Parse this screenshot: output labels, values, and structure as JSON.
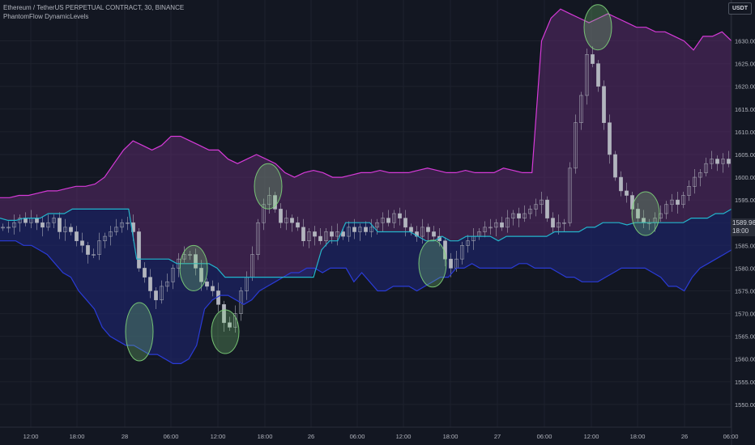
{
  "legend": {
    "symbol": "Ethereum / TetherUS PERPETUAL CONTRACT, 30, BINANCE",
    "indicator": "PhantomFlow DynamicLevels"
  },
  "currency_button": "USDT",
  "price_tag": {
    "price": "1589.96",
    "time": "18:00"
  },
  "colors": {
    "background": "#131722",
    "upper_band": "#d63ad8",
    "lower_band": "#2a3bd6",
    "mid_line": "#22b5cc",
    "candles": "#b2b5be",
    "highlight": "#7ed37a"
  },
  "chart_data": {
    "type": "line",
    "title": "",
    "xlabel": "",
    "ylabel": "",
    "ylim": [
      1545,
      1639
    ],
    "x_ticks": [
      "12:00",
      "18:00",
      "28",
      "06:00",
      "12:00",
      "18:00",
      "26",
      "06:00",
      "12:00",
      "18:00",
      "27",
      "06:00",
      "12:00",
      "18:00",
      "26",
      "06:00"
    ],
    "y_ticks": [
      1550,
      1555,
      1560,
      1565,
      1570,
      1575,
      1580,
      1585,
      1590,
      1595,
      1600,
      1605,
      1610,
      1615,
      1620,
      1625,
      1630
    ],
    "series": [
      {
        "values": [
          1595.5,
          1595.5,
          1596,
          1596,
          1596.5,
          1597,
          1597,
          1597.5,
          1598,
          1598,
          1598.5,
          1600,
          1603,
          1606,
          1608,
          1607,
          1606,
          1607,
          1609,
          1609,
          1608,
          1607,
          1606,
          1606,
          1604,
          1603,
          1604,
          1605,
          1604,
          1603,
          1601,
          1600,
          1601,
          1601.5,
          1601,
          1600,
          1600,
          1600.5,
          1601,
          1601,
          1601.5,
          1601,
          1601,
          1601,
          1601.5,
          1602,
          1601.5,
          1601,
          1601,
          1601.5,
          1601,
          1601,
          1601,
          1602,
          1601.5,
          1601,
          1601,
          1630,
          1635,
          1637,
          1636,
          1635,
          1634,
          1635,
          1636,
          1635,
          1634,
          1633,
          1633,
          1632,
          1632,
          1631,
          1630,
          1628,
          1631,
          1631,
          1632,
          1630
        ]
      },
      {
        "values": [
          1591,
          1590.5,
          1590.5,
          1591,
          1591,
          1591,
          1592,
          1592,
          1592,
          1593,
          1593,
          1593,
          1593,
          1593,
          1593,
          1593,
          1593,
          1582,
          1582,
          1582,
          1582,
          1582,
          1581,
          1581,
          1581,
          1581,
          1581,
          1580,
          1578,
          1578,
          1578,
          1578,
          1578,
          1578,
          1578,
          1578,
          1578,
          1578,
          1578,
          1578,
          1584,
          1586,
          1586,
          1590,
          1590,
          1590,
          1590,
          1588,
          1588,
          1588,
          1588,
          1588,
          1587,
          1586,
          1586,
          1587,
          1586,
          1586,
          1587,
          1587,
          1587,
          1587,
          1586,
          1587,
          1587,
          1587,
          1587,
          1587,
          1587,
          1588,
          1588,
          1588,
          1588,
          1589,
          1589,
          1590,
          1590,
          1590,
          1589.5,
          1590,
          1590,
          1590,
          1590,
          1590,
          1590,
          1590,
          1591,
          1591,
          1591,
          1592,
          1592,
          1593
        ]
      },
      {
        "values": [
          1586,
          1586,
          1586,
          1585,
          1585,
          1584,
          1583,
          1581,
          1579,
          1578,
          1575,
          1573,
          1571,
          1567,
          1565,
          1564,
          1563,
          1563,
          1562,
          1561,
          1561,
          1560,
          1559,
          1559,
          1560,
          1563,
          1571,
          1573,
          1574,
          1574,
          1573,
          1572,
          1573,
          1575,
          1576,
          1577,
          1578,
          1579,
          1579,
          1580,
          1580,
          1579,
          1580,
          1580,
          1580,
          1577,
          1579,
          1577,
          1575,
          1575,
          1576,
          1576,
          1576,
          1575,
          1576,
          1577,
          1578,
          1578,
          1580,
          1580,
          1581,
          1580,
          1580,
          1580,
          1580,
          1580,
          1581,
          1581,
          1580,
          1580,
          1580,
          1579,
          1578,
          1578,
          1577,
          1577,
          1577,
          1578,
          1579,
          1580,
          1580,
          1580,
          1580,
          1579,
          1578,
          1576,
          1576,
          1575,
          1578,
          1580,
          1581,
          1582,
          1583,
          1584
        ]
      },
      {
        "values": [
          1589,
          1589,
          1590,
          1591,
          1590,
          1591,
          1590,
          1589,
          1590,
          1591,
          1588,
          1589,
          1588,
          1586,
          1585,
          1583,
          1583,
          1586,
          1587,
          1588,
          1589,
          1590,
          1590,
          1588,
          1580,
          1578,
          1575,
          1573,
          1576,
          1577,
          1580,
          1582,
          1583,
          1583,
          1580,
          1577,
          1576,
          1575,
          1572,
          1568,
          1567,
          1570,
          1575,
          1578,
          1583,
          1590,
          1594,
          1596,
          1593,
          1590,
          1591,
          1590,
          1589,
          1586,
          1588,
          1587,
          1586,
          1588,
          1587,
          1588,
          1587,
          1589,
          1588,
          1589,
          1588,
          1589,
          1590,
          1591,
          1590,
          1592,
          1591,
          1589,
          1588,
          1587,
          1589,
          1588,
          1587,
          1586,
          1582,
          1580,
          1582,
          1585,
          1586,
          1587,
          1588,
          1589,
          1589,
          1590,
          1589,
          1591,
          1592,
          1591,
          1592,
          1593,
          1594,
          1595,
          1591,
          1589,
          1590,
          1590,
          1602,
          1612,
          1618,
          1627,
          1625,
          1620,
          1612,
          1605,
          1600,
          1597,
          1596,
          1593,
          1591,
          1590,
          1590,
          1591,
          1592,
          1594,
          1595,
          1594,
          1596,
          1598,
          1600,
          1601,
          1603,
          1604,
          1603,
          1604,
          1603
        ]
      }
    ]
  }
}
